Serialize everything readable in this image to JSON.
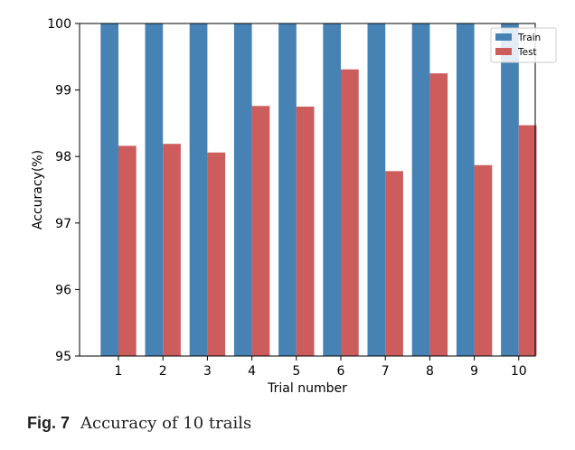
{
  "caption": {
    "figure_label": "Fig. 7",
    "text": "Accuracy of 10 trails"
  },
  "chart_data": {
    "type": "bar",
    "title": "",
    "xlabel": "Trial number",
    "ylabel": "Accuracy(%)",
    "categories": [
      "1",
      "2",
      "3",
      "4",
      "5",
      "6",
      "7",
      "8",
      "9",
      "10"
    ],
    "ylim": [
      95,
      100
    ],
    "yticks": [
      95,
      96,
      97,
      98,
      99,
      100
    ],
    "grid": false,
    "legend_position": "top-right",
    "series": [
      {
        "name": "Train",
        "color": "#4682b4",
        "values": [
          100,
          100,
          100,
          100,
          100,
          100,
          100,
          100,
          100,
          100
        ]
      },
      {
        "name": "Test",
        "color": "#cd5c5c",
        "values": [
          98.16,
          98.19,
          98.06,
          98.76,
          98.75,
          99.31,
          97.78,
          99.25,
          97.87,
          98.47
        ]
      }
    ]
  }
}
